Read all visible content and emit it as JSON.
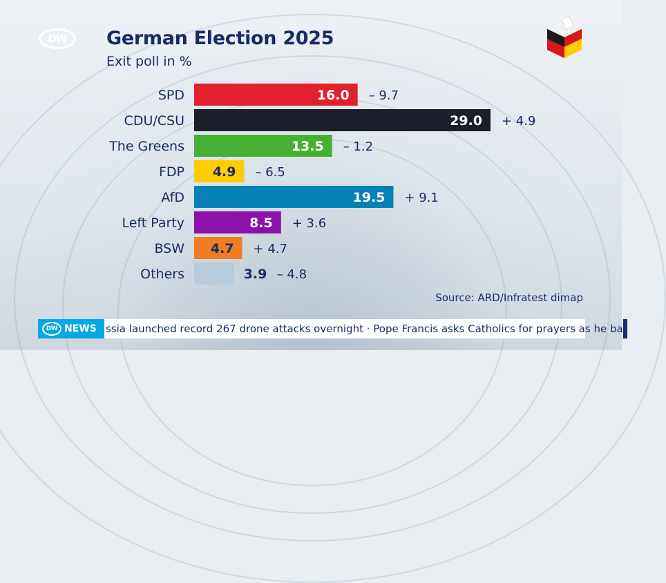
{
  "header": {
    "logo_text": "DW",
    "title": "German Election 2025",
    "subtitle": "Exit poll in %"
  },
  "colors": {
    "title": "#1b2b63",
    "accent": "#05a8e2"
  },
  "chart_data": {
    "type": "bar",
    "orientation": "horizontal",
    "title": "German Election 2025",
    "subtitle": "Exit poll in %",
    "categories": [
      "SPD",
      "CDU/CSU",
      "The Greens",
      "FDP",
      "AfD",
      "Left Party",
      "BSW",
      "Others"
    ],
    "values": [
      16.0,
      29.0,
      13.5,
      4.9,
      19.5,
      8.5,
      4.7,
      3.9
    ],
    "value_labels": [
      "16.0",
      "29.0",
      "13.5",
      "4.9",
      "19.5",
      "8.5",
      "4.7",
      "3.9"
    ],
    "changes": [
      "– 9.7",
      "+ 4.9",
      "– 1.2",
      "– 6.5",
      "+ 9.1",
      "+ 3.6",
      "+ 4.7",
      "– 4.8"
    ],
    "bar_colors": [
      "#e2202c",
      "#1c1f2a",
      "#46b034",
      "#ffcc00",
      "#0581b5",
      "#8a11aa",
      "#f07d24",
      "#b7cbda"
    ],
    "label_colors": [
      "#ffffff",
      "#ffffff",
      "#ffffff",
      "#1b2b63",
      "#ffffff",
      "#ffffff",
      "#1b2b63",
      "#1b2b63"
    ],
    "xlim": [
      0,
      29
    ]
  },
  "source": "Source: ARD/Infratest dimap",
  "ticker": {
    "badge_logo": "DW",
    "badge_label": "NEWS",
    "text": "ssia launched record 267 drone attacks overnight · Pope Francis asks Catholics for prayers as he ba"
  }
}
